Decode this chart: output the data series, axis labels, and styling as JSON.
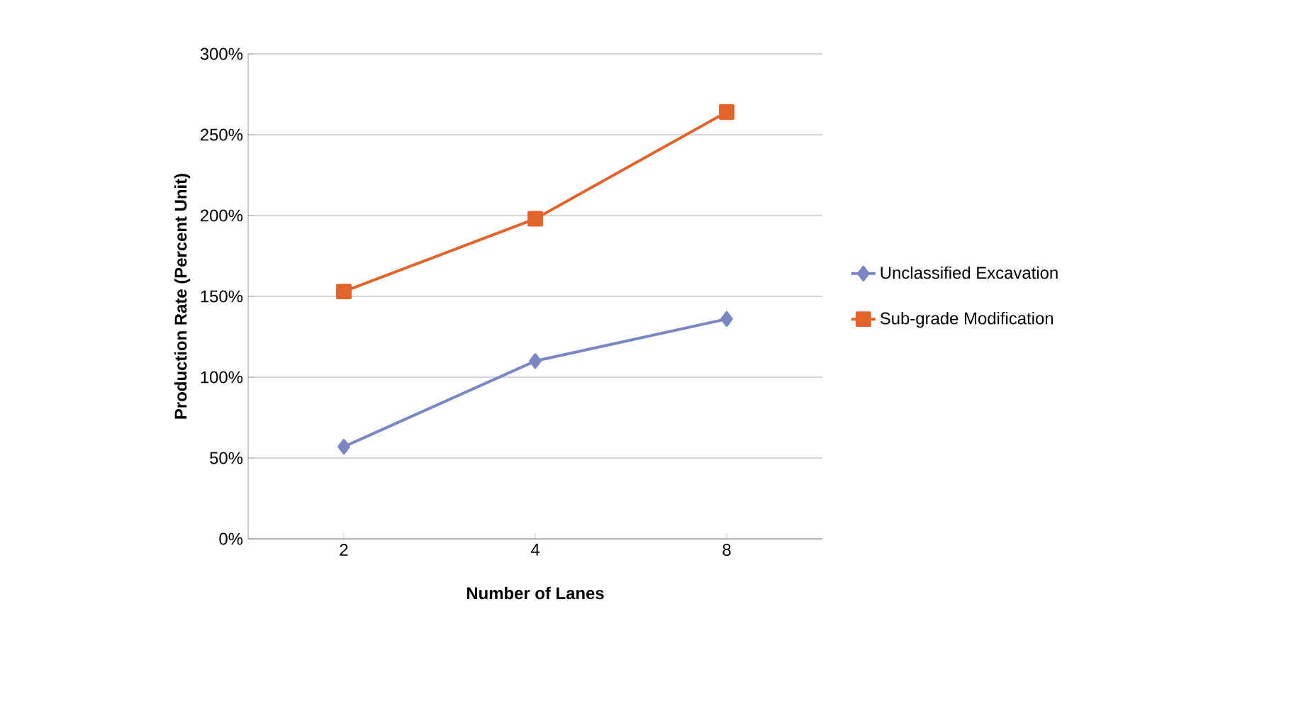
{
  "chart_data": {
    "type": "line",
    "xlabel": "Number of Lanes",
    "ylabel": "Production Rate (Percent Unit)",
    "categories": [
      "2",
      "4",
      "8"
    ],
    "series": [
      {
        "name": "Unclassified Excavation",
        "color": "#7b86c4",
        "marker": "diamond",
        "values": [
          57,
          110,
          136
        ]
      },
      {
        "name": "Sub-grade Modification",
        "color": "#e0642c",
        "marker": "square",
        "values": [
          153,
          198,
          264
        ]
      }
    ],
    "ylim": [
      0,
      300
    ],
    "yticks": [
      {
        "value": 0,
        "label": "0%"
      },
      {
        "value": 50,
        "label": "50%"
      },
      {
        "value": 100,
        "label": "100%"
      },
      {
        "value": 150,
        "label": "150%"
      },
      {
        "value": 200,
        "label": "200%"
      },
      {
        "value": 250,
        "label": "250%"
      },
      {
        "value": 300,
        "label": "300%"
      }
    ],
    "grid": "y",
    "legend": "right",
    "line_style": "solid"
  }
}
